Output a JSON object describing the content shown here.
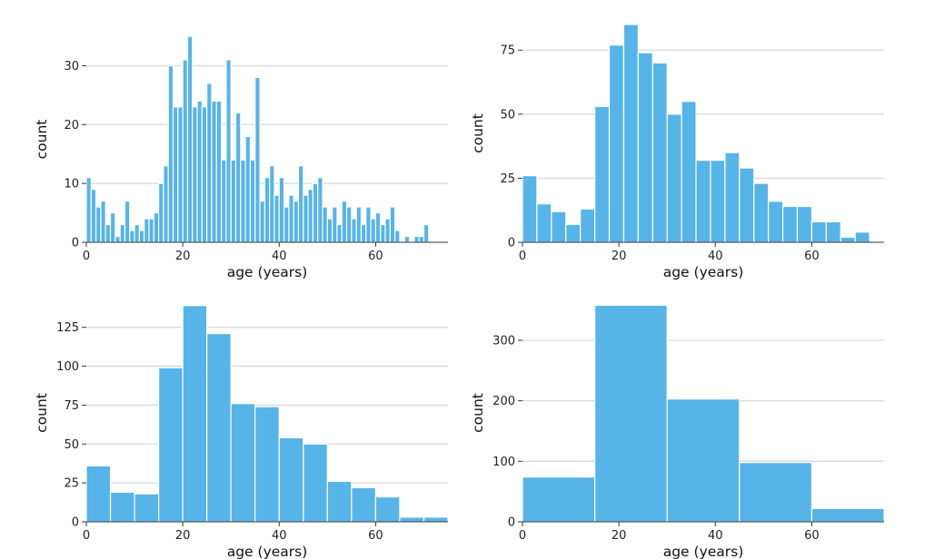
{
  "colors": {
    "bar": "#56B4E9",
    "gridline": "#d9d9d9",
    "axis": "#333333",
    "text": "#222222"
  },
  "chart_data": [
    {
      "type": "bar",
      "title": "",
      "xlabel": "age (years)",
      "ylabel": "count",
      "xlim": [
        0,
        75
      ],
      "ylim": [
        0,
        35
      ],
      "x_ticks": [
        0,
        20,
        40,
        60
      ],
      "y_ticks": [
        0,
        10,
        20,
        30
      ],
      "grid": "horizontal",
      "bin_width": 1,
      "bin_start": 0,
      "values": [
        11,
        9,
        6,
        7,
        3,
        5,
        1,
        3,
        7,
        2,
        3,
        2,
        4,
        4,
        5,
        10,
        13,
        30,
        23,
        23,
        31,
        35,
        23,
        24,
        23,
        27,
        24,
        24,
        14,
        31,
        14,
        22,
        14,
        18,
        14,
        28,
        7,
        11,
        13,
        8,
        11,
        6,
        8,
        7,
        13,
        8,
        9,
        10,
        11,
        6,
        4,
        6,
        3,
        7,
        6,
        4,
        6,
        3,
        6,
        4,
        5,
        3,
        4,
        6,
        2,
        0,
        1,
        0,
        1,
        1,
        3
      ]
    },
    {
      "type": "bar",
      "title": "",
      "xlabel": "age (years)",
      "ylabel": "count",
      "xlim": [
        0,
        75
      ],
      "ylim": [
        0,
        85
      ],
      "x_ticks": [
        0,
        20,
        40,
        60
      ],
      "y_ticks": [
        0,
        25,
        50,
        75
      ],
      "grid": "horizontal",
      "bin_width": 3,
      "bin_start": 0,
      "values": [
        26,
        15,
        12,
        7,
        13,
        53,
        77,
        85,
        74,
        70,
        50,
        55,
        32,
        32,
        35,
        29,
        23,
        16,
        14,
        14,
        8,
        8,
        2,
        4
      ]
    },
    {
      "type": "bar",
      "title": "",
      "xlabel": "age (years)",
      "ylabel": "count",
      "xlim": [
        0,
        75
      ],
      "ylim": [
        0,
        140
      ],
      "x_ticks": [
        0,
        20,
        40,
        60
      ],
      "y_ticks": [
        0,
        25,
        50,
        75,
        100,
        125
      ],
      "grid": "horizontal",
      "bin_width": 5,
      "bin_start": 0,
      "values": [
        36,
        19,
        18,
        99,
        139,
        121,
        76,
        74,
        54,
        50,
        26,
        22,
        16,
        3,
        3
      ]
    },
    {
      "type": "bar",
      "title": "",
      "xlabel": "age (years)",
      "ylabel": "count",
      "xlim": [
        0,
        75
      ],
      "ylim": [
        0,
        360
      ],
      "x_ticks": [
        0,
        20,
        40,
        60
      ],
      "y_ticks": [
        0,
        100,
        200,
        300
      ],
      "grid": "horizontal",
      "bin_width": 15,
      "bin_start": 0,
      "values": [
        74,
        358,
        203,
        98,
        22
      ]
    }
  ]
}
